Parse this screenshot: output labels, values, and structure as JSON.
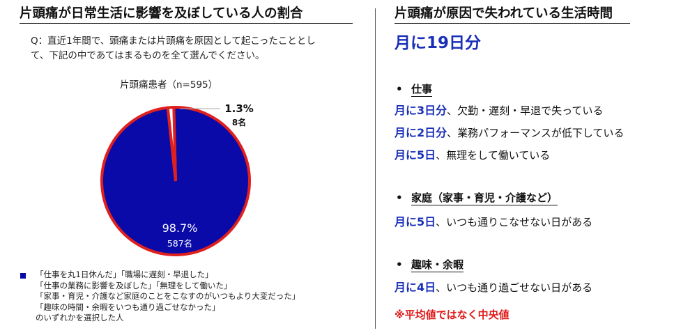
{
  "left": {
    "title": "片頭痛が日常生活に影響を及ぼしている人の割合",
    "question_line1": "Q：直近1年間で、頭痛または片頭痛を原因として起こったこととし",
    "question_line2": "て、下記の中であてはまるものを全て選んでください。",
    "legend_lines": [
      "「仕事を丸1日休んだ」「職場に遅刻・早退した」",
      "「仕事の業務に影響を及ぼした」「無理をして働いた」",
      "「家事・育児・介護など家庭のことをこなすのがいつもより大変だった」",
      "「趣味の時間・余暇をいつも通り過ごせなかった」",
      "のいずれかを選択した人"
    ]
  },
  "chart_data": {
    "type": "pie",
    "title": "片頭痛患者（n=595）",
    "slices": [
      {
        "percent_label": "98.7%",
        "count_label": "587名",
        "value": 98.7,
        "count": 587,
        "color": "#0a0aa8"
      },
      {
        "percent_label": "1.3%",
        "count_label": "8名",
        "value": 1.3,
        "count": 8,
        "color": "#ffffff"
      }
    ],
    "stroke_color": "#e0201e",
    "legend_placement": "bottom-left"
  },
  "right": {
    "title": "片頭痛が原因で失われている生活時間",
    "headline": "月に19日分",
    "sections": [
      {
        "bullet": "•",
        "heading": "仕事",
        "items": [
          {
            "em": "月に3日分",
            "text": "、欠勤・遅刻・早退で失っている"
          },
          {
            "em": "月に2日分",
            "text": "、業務パフォーマンスが低下している"
          },
          {
            "em": "月に5日",
            "text": "、無理をして働いている"
          }
        ]
      },
      {
        "bullet": "•",
        "heading": "家庭（家事・育児・介護など）",
        "items": [
          {
            "em": "月に5日",
            "text": "、いつも通りこなせない日がある"
          }
        ]
      },
      {
        "bullet": "•",
        "heading": "趣味・余暇",
        "items": [
          {
            "em": "月に4日",
            "text": "、いつも通り過ごせない日がある"
          }
        ]
      }
    ],
    "note": "※平均値ではなく中央値"
  }
}
